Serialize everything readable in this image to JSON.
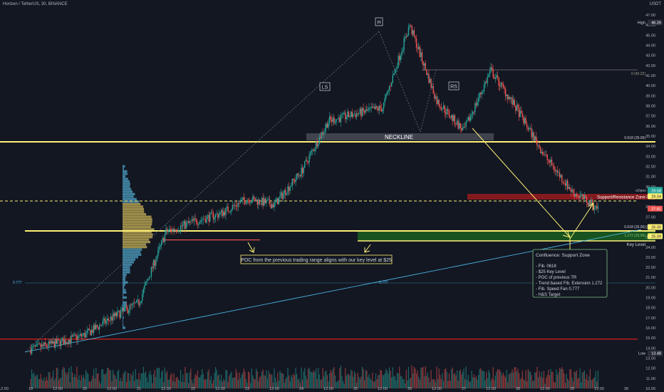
{
  "header": {
    "symbol_title": "Horizen / TetherUS, 30, BINANCE",
    "currency": "USDT"
  },
  "colors": {
    "background": "#131722",
    "up": "#26a69a",
    "down": "#ef5350",
    "yellow": "#fff176",
    "green_zone": "#1b5e20",
    "red_zone": "#b71c1c",
    "fan": "#4fc3f7",
    "neckline_box": "#5d606b",
    "text": "#d1d4dc"
  },
  "price_axis": {
    "ticks": [
      "47.00",
      "46.00",
      "45.00",
      "44.00",
      "43.00",
      "42.00",
      "41.00",
      "40.00",
      "39.00",
      "38.00",
      "37.00",
      "36.00",
      "35.00",
      "34.00",
      "33.00",
      "32.00",
      "31.00",
      "30.00",
      "29.00",
      "28.00",
      "27.00",
      "26.00",
      "25.00",
      "24.00",
      "23.00",
      "22.00",
      "21.00",
      "20.00",
      "19.00",
      "18.00",
      "17.00",
      "16.00",
      "15.00",
      "14.00",
      "13.00",
      "12.00",
      "11.00",
      "10.00"
    ],
    "tags": [
      {
        "label": "High",
        "value": "46.26",
        "color": "#2a2e39"
      },
      {
        "label": "",
        "value": "29.69",
        "color": "#26a69a"
      },
      {
        "label": "",
        "value": "29.58",
        "color": "#26a69a"
      },
      {
        "label": "",
        "value": "29.04",
        "color": "#fff176"
      },
      {
        "label": "",
        "value": "27.81",
        "color": "#ef5350"
      },
      {
        "label": "",
        "value": "26.00",
        "color": "#fff176"
      },
      {
        "label": "",
        "value": "25.09",
        "color": "#fff176"
      },
      {
        "label": "Low",
        "value": "13.48",
        "color": "#2a2e39"
      }
    ]
  },
  "time_axis": {
    "ticks": [
      "12:00",
      "19",
      "12:00",
      "20",
      "12:00",
      "21",
      "12:00",
      "22",
      "12:00",
      "23",
      "12:00",
      "24",
      "12:00",
      "25",
      "12:00",
      "26",
      "12:00",
      "27",
      "12:00",
      "28",
      "12:00",
      "29",
      "12:00",
      "30"
    ]
  },
  "annotations": {
    "head": "H",
    "left_shoulder": "LS",
    "right_shoulder": "RS",
    "neckline": "NECKLINE",
    "support_resistance": "Support/Resistance Zone",
    "key_level": "Key Level",
    "fib_0": "0 (42.22)",
    "fib_0618_top": "0.618 (35.00)",
    "fib_0618_bottom": "0.618 (26.00)",
    "fib_1272": "1.272 (25.99)",
    "fan_left": "0.777",
    "fan_mid": "0.777",
    "open_tag": "oOpen",
    "poc_note": "POC from the previous trading range aligns with our key level at $25",
    "confluence": {
      "title": "Confluence: Support Zone",
      "items": [
        "- Fib. 0618",
        "- $25 Key Level",
        "- POC of previous TR",
        "- Trend based Fib. Extension 1.272",
        "- Fib. Speed Fan 0.777",
        "- H&S Target"
      ]
    }
  },
  "chart_data": {
    "type": "candlestick",
    "title": "Horizen / TetherUS, 30, BINANCE",
    "x_axis_labels": [
      "19",
      "20",
      "21",
      "22",
      "23",
      "24",
      "25",
      "26",
      "27",
      "28",
      "29",
      "30"
    ],
    "ylim": [
      10,
      47.5
    ],
    "key_price_levels": [
      {
        "name": "High",
        "value": 46.26
      },
      {
        "name": "Fib 0",
        "value": 42.22
      },
      {
        "name": "Neckline / Fib 0.618",
        "value": 35.0
      },
      {
        "name": "Support/Resistance Zone",
        "value": 29.04
      },
      {
        "name": "Fib 0.618",
        "value": 26.0
      },
      {
        "name": "Key Level",
        "value": 25.09
      },
      {
        "name": "Low",
        "value": 13.48
      },
      {
        "name": "Red line",
        "value": 15.0
      }
    ],
    "price_path_keypoints": [
      {
        "x": "18 12:00",
        "close": 13.9
      },
      {
        "x": "19",
        "close": 14.5
      },
      {
        "x": "19 12:00",
        "close": 15.3
      },
      {
        "x": "20",
        "close": 17.0
      },
      {
        "x": "20 12:00",
        "close": 18.5
      },
      {
        "x": "21",
        "close": 25.5
      },
      {
        "x": "21 12:00",
        "close": 26.5
      },
      {
        "x": "22",
        "close": 27.3
      },
      {
        "x": "22 12:00",
        "close": 28.8
      },
      {
        "x": "23",
        "close": 28.2
      },
      {
        "x": "23 12:00",
        "close": 31.5
      },
      {
        "x": "24",
        "close": 36.5
      },
      {
        "x": "24 12:00",
        "close": 37.2
      },
      {
        "x": "25",
        "close": 37.8
      },
      {
        "x": "25 12:00",
        "close": 46.0
      },
      {
        "x": "26",
        "close": 38.5
      },
      {
        "x": "26 12:00",
        "close": 35.5
      },
      {
        "x": "27",
        "close": 41.5
      },
      {
        "x": "27 12:00",
        "close": 37.5
      },
      {
        "x": "28",
        "close": 33.0
      },
      {
        "x": "28 12:00",
        "close": 29.5
      },
      {
        "x": "29",
        "close": 27.8
      }
    ]
  }
}
